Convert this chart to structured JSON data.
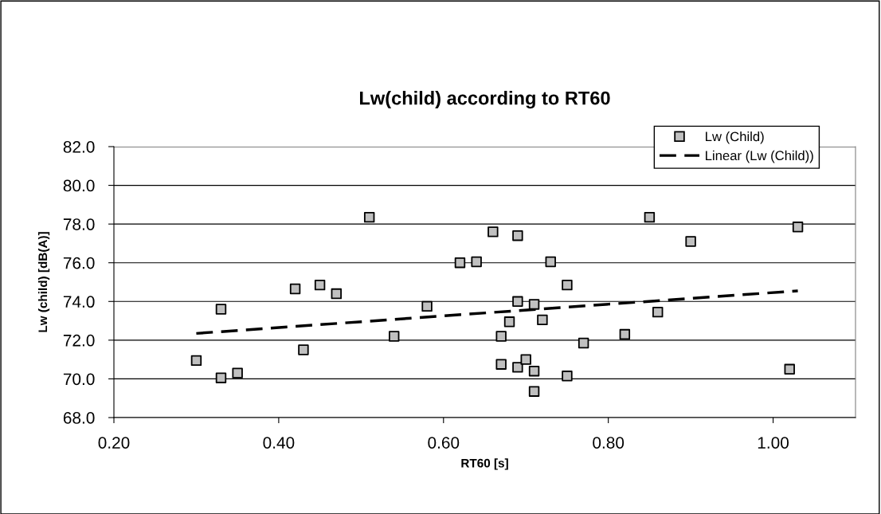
{
  "chart_data": {
    "type": "scatter",
    "title": "Lw(child) according to RT60",
    "xlabel": "RT60 [s]",
    "ylabel": "Lw (child) [dB(A)]",
    "xlim": [
      0.2,
      1.1
    ],
    "xticks": [
      {
        "value": 0.2,
        "label": "0.20"
      },
      {
        "value": 0.4,
        "label": "0.40"
      },
      {
        "value": 0.6,
        "label": "0.60"
      },
      {
        "value": 0.8,
        "label": "0.80"
      },
      {
        "value": 1.0,
        "label": "1.00"
      }
    ],
    "ylim": [
      68,
      82
    ],
    "yticks": [
      {
        "value": 68,
        "label": "68.0"
      },
      {
        "value": 70,
        "label": "70.0"
      },
      {
        "value": 72,
        "label": "72.0"
      },
      {
        "value": 74,
        "label": "74.0"
      },
      {
        "value": 76,
        "label": "76.0"
      },
      {
        "value": 78,
        "label": "78.0"
      },
      {
        "value": 80,
        "label": "80.0"
      },
      {
        "value": 82,
        "label": "82.0"
      }
    ],
    "grid": "y",
    "legend": "top right",
    "series": [
      {
        "name": "Lw (Child)",
        "marker": "square",
        "color": "#c0c0c0",
        "x": [
          0.3,
          0.33,
          0.33,
          0.35,
          0.42,
          0.43,
          0.45,
          0.47,
          0.51,
          0.54,
          0.58,
          0.62,
          0.64,
          0.66,
          0.67,
          0.67,
          0.68,
          0.69,
          0.69,
          0.69,
          0.7,
          0.71,
          0.71,
          0.71,
          0.72,
          0.73,
          0.75,
          0.75,
          0.77,
          0.82,
          0.85,
          0.86,
          0.9,
          1.02,
          1.03
        ],
        "values": [
          70.95,
          73.6,
          70.05,
          70.3,
          74.65,
          71.5,
          74.85,
          74.4,
          78.35,
          72.2,
          73.75,
          76.0,
          76.05,
          77.6,
          72.2,
          70.75,
          72.95,
          77.4,
          74.0,
          70.6,
          71.0,
          73.85,
          70.4,
          69.35,
          73.05,
          76.05,
          74.85,
          70.15,
          71.85,
          72.3,
          78.35,
          73.45,
          77.1,
          70.5,
          77.85
        ]
      },
      {
        "name": "Linear (Lw (Child))",
        "type": "line",
        "line_style": "dashed",
        "marker": "none",
        "color": "#000000",
        "x": [
          0.3,
          1.03
        ],
        "values": [
          72.35,
          74.55
        ]
      }
    ]
  }
}
